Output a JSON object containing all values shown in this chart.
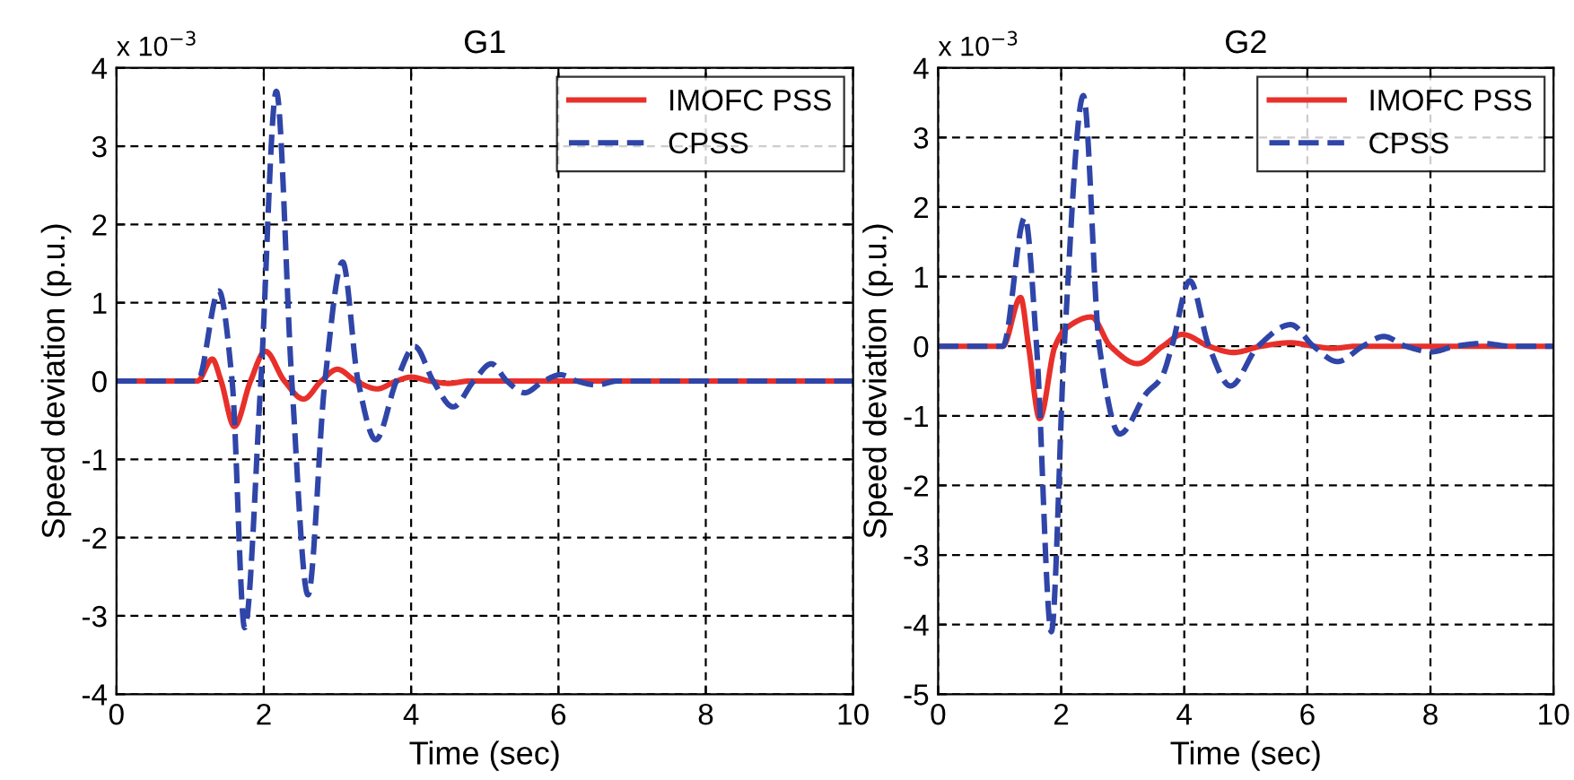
{
  "chart_data": [
    {
      "type": "line",
      "title": "G1",
      "xlabel": "Time (sec)",
      "ylabel": "Speed deviation (p.u.)",
      "annotations": [
        "x 10$^{−3}$"
      ],
      "xlim": [
        0,
        10
      ],
      "ylim": [
        -4,
        4
      ],
      "xticks": [
        0,
        2,
        4,
        6,
        8,
        10
      ],
      "yticks": [
        -4,
        -3,
        -2,
        -1,
        0,
        1,
        2,
        3,
        4
      ],
      "grid": true,
      "legend": "top right",
      "series": [
        {
          "name": "IMOFC PSS",
          "color": "#e8302a",
          "line_style": "solid",
          "x": [
            0,
            1.1,
            1.3,
            1.42,
            1.6,
            1.82,
            2.02,
            2.28,
            2.54,
            2.78,
            3.0,
            3.25,
            3.54,
            3.8,
            4.0,
            4.25,
            4.5,
            4.8,
            10
          ],
          "values": [
            0,
            0,
            0.28,
            0,
            -0.58,
            0,
            0.38,
            0,
            -0.23,
            0,
            0.15,
            0,
            -0.1,
            0,
            0.05,
            0,
            -0.03,
            0,
            0
          ]
        },
        {
          "name": "CPSS",
          "color": "#2f45a8",
          "line_style": "dashed",
          "x": [
            0,
            1.1,
            1.39,
            1.57,
            1.74,
            1.96,
            2.17,
            2.38,
            2.6,
            2.83,
            3.07,
            3.28,
            3.52,
            3.8,
            4.05,
            4.3,
            4.57,
            4.85,
            5.09,
            5.3,
            5.54,
            5.8,
            6.03,
            6.25,
            6.52,
            6.8,
            10
          ],
          "values": [
            0,
            0,
            1.15,
            0,
            -3.15,
            0,
            3.7,
            0,
            -2.73,
            0,
            1.52,
            0,
            -0.75,
            0,
            0.44,
            0,
            -0.33,
            0,
            0.22,
            0,
            -0.15,
            0,
            0.08,
            0,
            -0.05,
            0,
            0
          ]
        }
      ]
    },
    {
      "type": "line",
      "title": "G2",
      "xlabel": "Time (sec)",
      "ylabel": "Speed deviation (p.u.)",
      "annotations": [
        "x 10$^{−3}$"
      ],
      "xlim": [
        0,
        10
      ],
      "ylim": [
        -5,
        4
      ],
      "xticks": [
        0,
        2,
        4,
        6,
        8,
        10
      ],
      "yticks": [
        -5,
        -4,
        -3,
        -2,
        -1,
        0,
        1,
        2,
        3,
        4
      ],
      "grid": true,
      "legend": "top right",
      "series": [
        {
          "name": "IMOFC PSS",
          "color": "#e8302a",
          "line_style": "solid",
          "x": [
            0,
            1.05,
            1.34,
            1.47,
            1.65,
            1.9,
            2.07,
            2.49,
            2.8,
            3.24,
            3.65,
            3.97,
            4.4,
            4.8,
            5.25,
            5.73,
            6.1,
            6.41,
            6.8,
            10
          ],
          "values": [
            0,
            0,
            0.7,
            0,
            -1.04,
            0,
            0.25,
            0.42,
            0,
            -0.25,
            0,
            0.17,
            0,
            -0.09,
            0,
            0.05,
            0,
            -0.03,
            0,
            0
          ]
        },
        {
          "name": "CPSS",
          "color": "#2f45a8",
          "line_style": "dashed",
          "x": [
            0,
            1.05,
            1.41,
            1.6,
            1.84,
            2.05,
            2.36,
            2.62,
            2.95,
            3.39,
            3.63,
            3.8,
            4.09,
            4.4,
            4.75,
            5.2,
            5.73,
            6.1,
            6.49,
            6.9,
            7.24,
            7.6,
            8.02,
            8.4,
            8.85,
            9.3,
            10
          ],
          "values": [
            0,
            0,
            1.85,
            0,
            -4.1,
            0,
            3.6,
            0,
            -1.26,
            -0.67,
            -0.45,
            0,
            0.94,
            0,
            -0.57,
            0,
            0.31,
            0,
            -0.22,
            0,
            0.14,
            0,
            -0.08,
            0,
            0.04,
            0,
            0
          ]
        }
      ]
    }
  ]
}
